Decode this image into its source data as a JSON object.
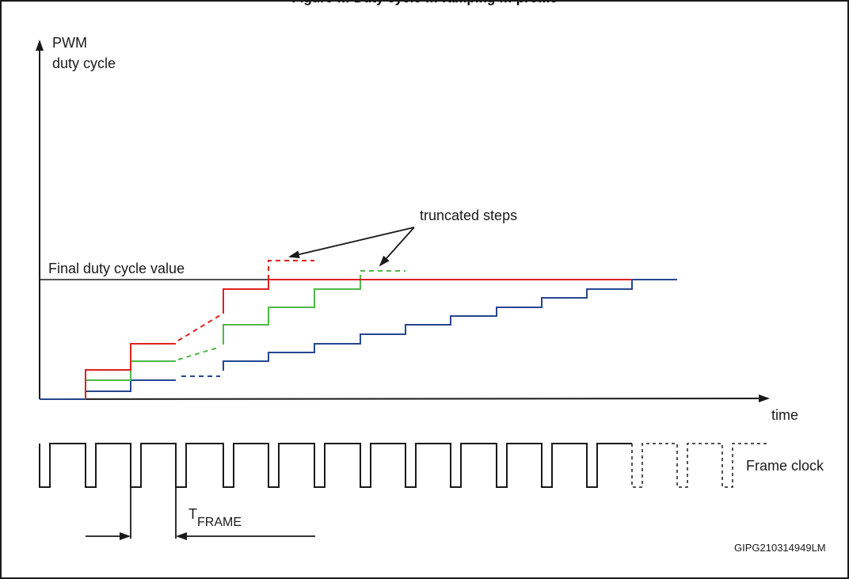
{
  "figure": {
    "title_partial": "Figure … Duty cycle … ramping … profile",
    "y_axis_label_line1": "PWM",
    "y_axis_label_line2": "duty cycle",
    "x_axis_label": "time",
    "final_value_label": "Final duty cycle value",
    "truncated_label": "truncated steps",
    "clock_label": "Frame clock",
    "period_label_main": "T",
    "period_label_sub": "FRAME",
    "figure_id": "GIPG210314949LM"
  },
  "colors": {
    "red": "#e02020",
    "green": "#4fb848",
    "blue": "#26468f",
    "black": "#1a1a1a"
  }
}
